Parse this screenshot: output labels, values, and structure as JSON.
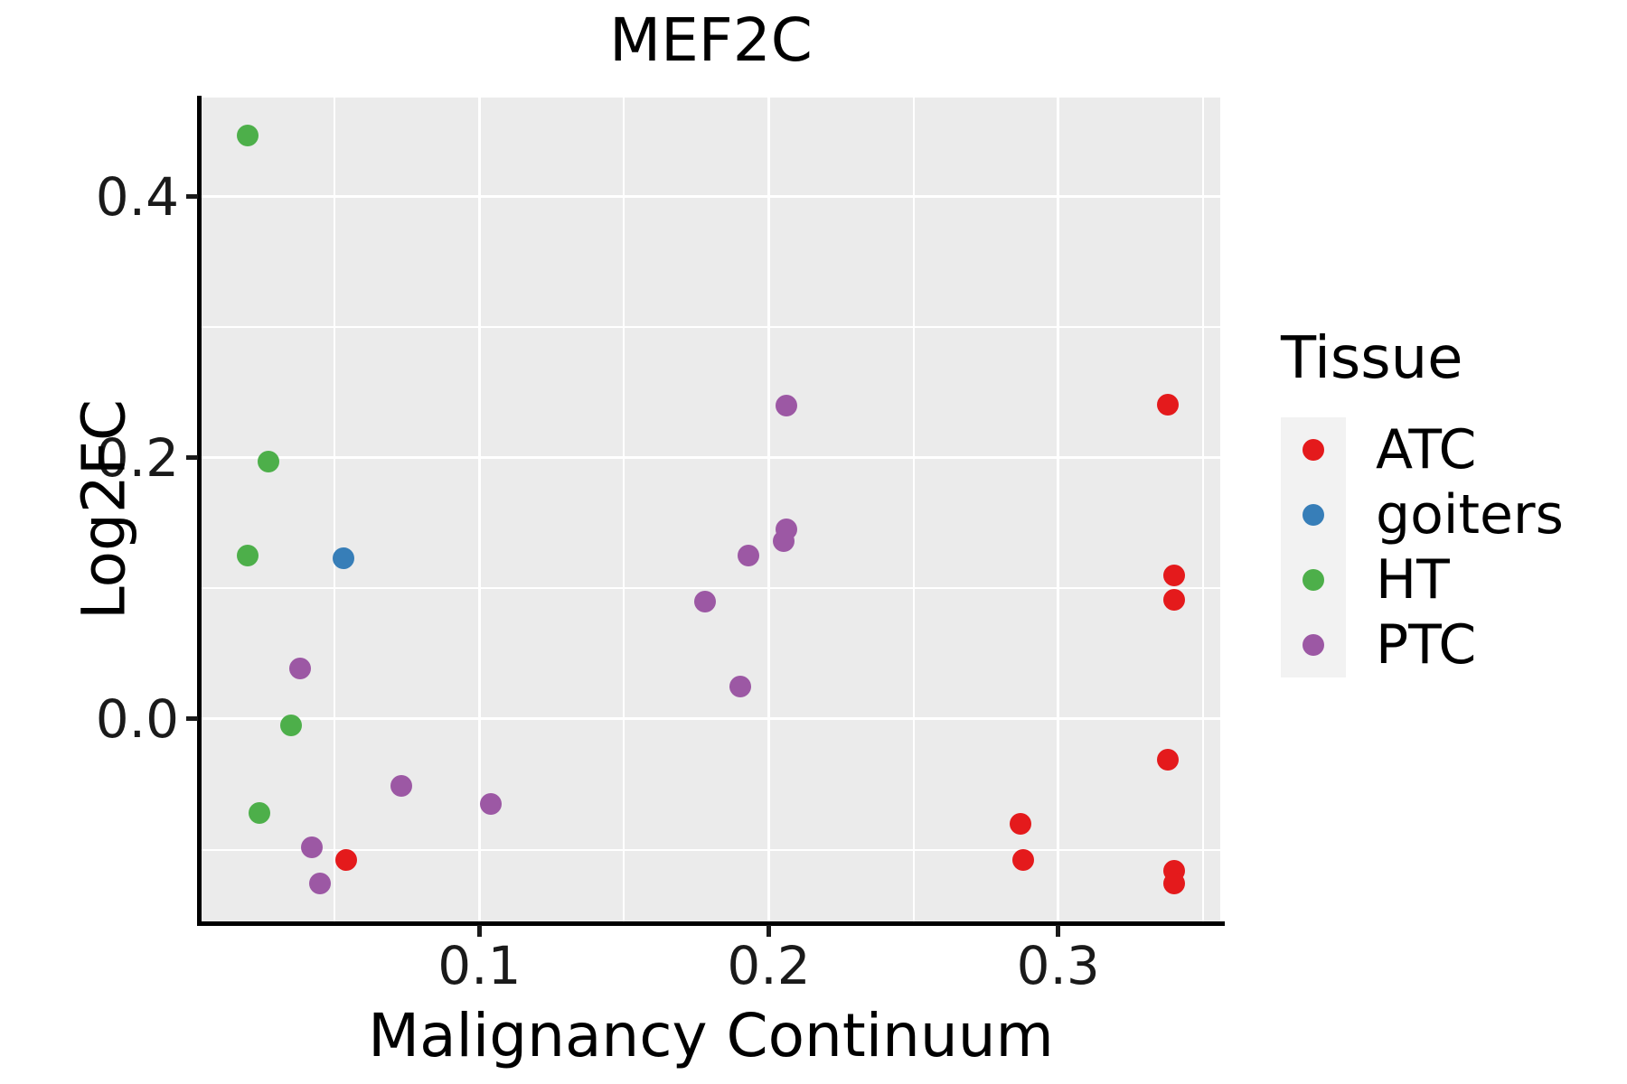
{
  "chart_data": {
    "type": "scatter",
    "title": "MEF2C",
    "xlabel": "Malignancy Continuum",
    "ylabel": "Log2FC",
    "legend_title": "Tissue",
    "legend_position": "right",
    "panel_bg": "#EBEBEB",
    "grid": {
      "major_color": "#FFFFFF",
      "minor_color": "#FFFFFF",
      "on": true
    },
    "axes": {
      "xlim": [
        0.004,
        0.356
      ],
      "ylim": [
        -0.155,
        0.476
      ],
      "x_ticks": [
        0.1,
        0.2,
        0.3
      ],
      "x_tick_labels": [
        "0.1",
        "0.2",
        "0.3"
      ],
      "x_minor": [
        0.05,
        0.15,
        0.25,
        0.35
      ],
      "y_ticks": [
        0.0,
        0.2,
        0.4
      ],
      "y_tick_labels": [
        "0.0",
        "0.2",
        "0.4"
      ],
      "y_minor": [
        -0.1,
        0.1,
        0.3
      ]
    },
    "series": [
      {
        "name": "ATC",
        "color": "#E41A1C",
        "points": [
          [
            0.054,
            -0.108
          ],
          [
            0.287,
            -0.08
          ],
          [
            0.288,
            -0.108
          ],
          [
            0.338,
            0.241
          ],
          [
            0.338,
            -0.031
          ],
          [
            0.34,
            0.11
          ],
          [
            0.34,
            0.091
          ],
          [
            0.34,
            -0.116
          ],
          [
            0.34,
            -0.126
          ]
        ]
      },
      {
        "name": "goiters",
        "color": "#377EB8",
        "points": [
          [
            0.053,
            0.123
          ]
        ]
      },
      {
        "name": "HT",
        "color": "#4DAF4A",
        "points": [
          [
            0.02,
            0.447
          ],
          [
            0.027,
            0.197
          ],
          [
            0.02,
            0.125
          ],
          [
            0.035,
            -0.005
          ],
          [
            0.024,
            -0.072
          ]
        ]
      },
      {
        "name": "PTC",
        "color": "#9C58A4",
        "points": [
          [
            0.038,
            0.039
          ],
          [
            0.042,
            -0.098
          ],
          [
            0.045,
            -0.126
          ],
          [
            0.073,
            -0.051
          ],
          [
            0.104,
            -0.065
          ],
          [
            0.178,
            0.09
          ],
          [
            0.19,
            0.025
          ],
          [
            0.193,
            0.125
          ],
          [
            0.205,
            0.136
          ],
          [
            0.206,
            0.145
          ],
          [
            0.206,
            0.24
          ]
        ]
      }
    ]
  }
}
